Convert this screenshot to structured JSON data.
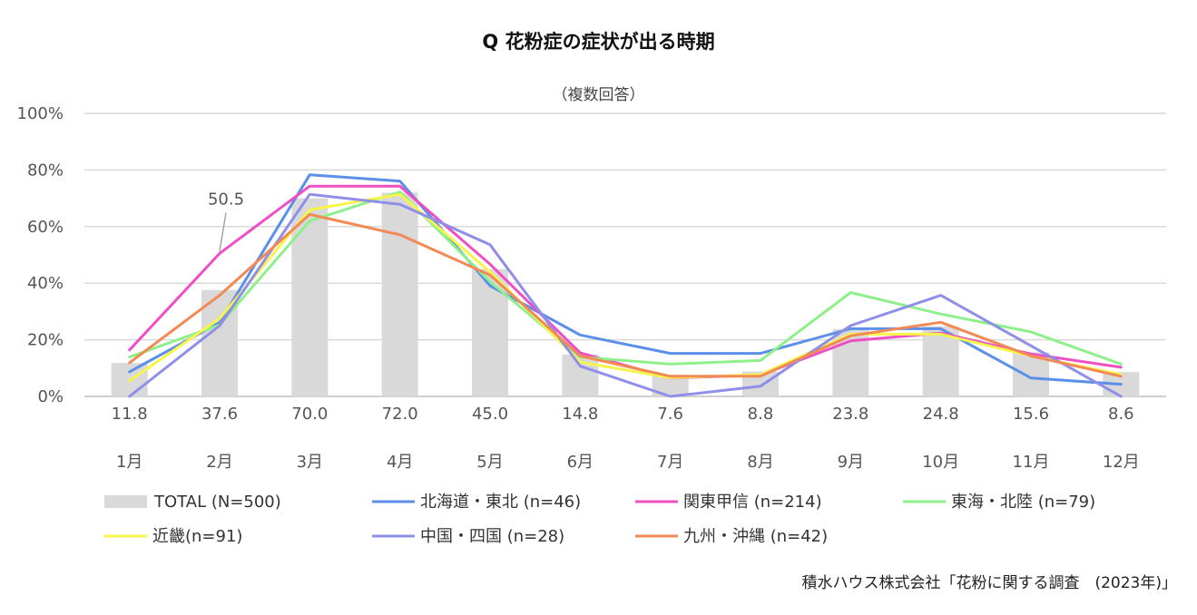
{
  "chart_data": {
    "type": "bar+line",
    "title": "Q 花粉症の症状が出る時期",
    "subtitle": "（複数回答）",
    "source": "積水ハウス株式会社「花粉に関する調査　(2023年)」",
    "categories": [
      "1月",
      "2月",
      "3月",
      "4月",
      "5月",
      "6月",
      "7月",
      "8月",
      "9月",
      "10月",
      "11月",
      "12月"
    ],
    "ylim": [
      0,
      100
    ],
    "yticks": [
      "0%",
      "20%",
      "40%",
      "60%",
      "80%",
      "100%"
    ],
    "grid": true,
    "legend_position": "bottom",
    "annotation": {
      "label": "50.5",
      "category": "2月",
      "value": 50.5
    },
    "bar_series": {
      "name": "TOTAL (N=500)",
      "color": "#d9d9d9",
      "values": [
        11.8,
        37.6,
        70.0,
        72.0,
        45.0,
        14.8,
        7.6,
        8.8,
        23.8,
        24.8,
        15.6,
        8.6
      ],
      "labels": [
        "11.8",
        "37.6",
        "70.0",
        "72.0",
        "45.0",
        "14.8",
        "7.6",
        "8.8",
        "23.8",
        "24.8",
        "15.6",
        "8.6"
      ]
    },
    "line_series": [
      {
        "name": "北海道・東北 (n=46)",
        "color": "#5b8fe8",
        "values": [
          8.7,
          26.1,
          78.3,
          76.1,
          39.1,
          21.7,
          15.2,
          15.2,
          23.9,
          23.9,
          6.5,
          4.3
        ]
      },
      {
        "name": "関東甲信 (n=214)",
        "color": "#ee4fc4",
        "values": [
          16.4,
          50.5,
          74.3,
          74.3,
          46.7,
          15.4,
          6.5,
          7.5,
          19.6,
          22.4,
          15.0,
          10.3
        ]
      },
      {
        "name": "東海・北陸 (n=79)",
        "color": "#8ef08a",
        "values": [
          13.9,
          25.3,
          62.0,
          72.2,
          40.5,
          13.9,
          11.4,
          12.7,
          36.7,
          29.1,
          22.8,
          11.4
        ]
      },
      {
        "name": "近畿(n=91)",
        "color": "#f7f44a",
        "values": [
          5.5,
          27.5,
          65.9,
          71.4,
          44.0,
          12.1,
          6.6,
          7.7,
          22.0,
          22.0,
          14.3,
          7.7
        ]
      },
      {
        "name": "中国・四国 (n=28)",
        "color": "#8f8fe9",
        "values": [
          0.0,
          25.0,
          71.4,
          67.9,
          53.6,
          10.7,
          0.0,
          3.6,
          25.0,
          35.7,
          17.9,
          0.0
        ]
      },
      {
        "name": "九州・沖縄 (n=42)",
        "color": "#f28a55",
        "values": [
          11.9,
          35.7,
          64.3,
          57.1,
          42.9,
          14.3,
          7.1,
          7.1,
          21.4,
          26.2,
          14.3,
          7.1
        ]
      }
    ]
  }
}
